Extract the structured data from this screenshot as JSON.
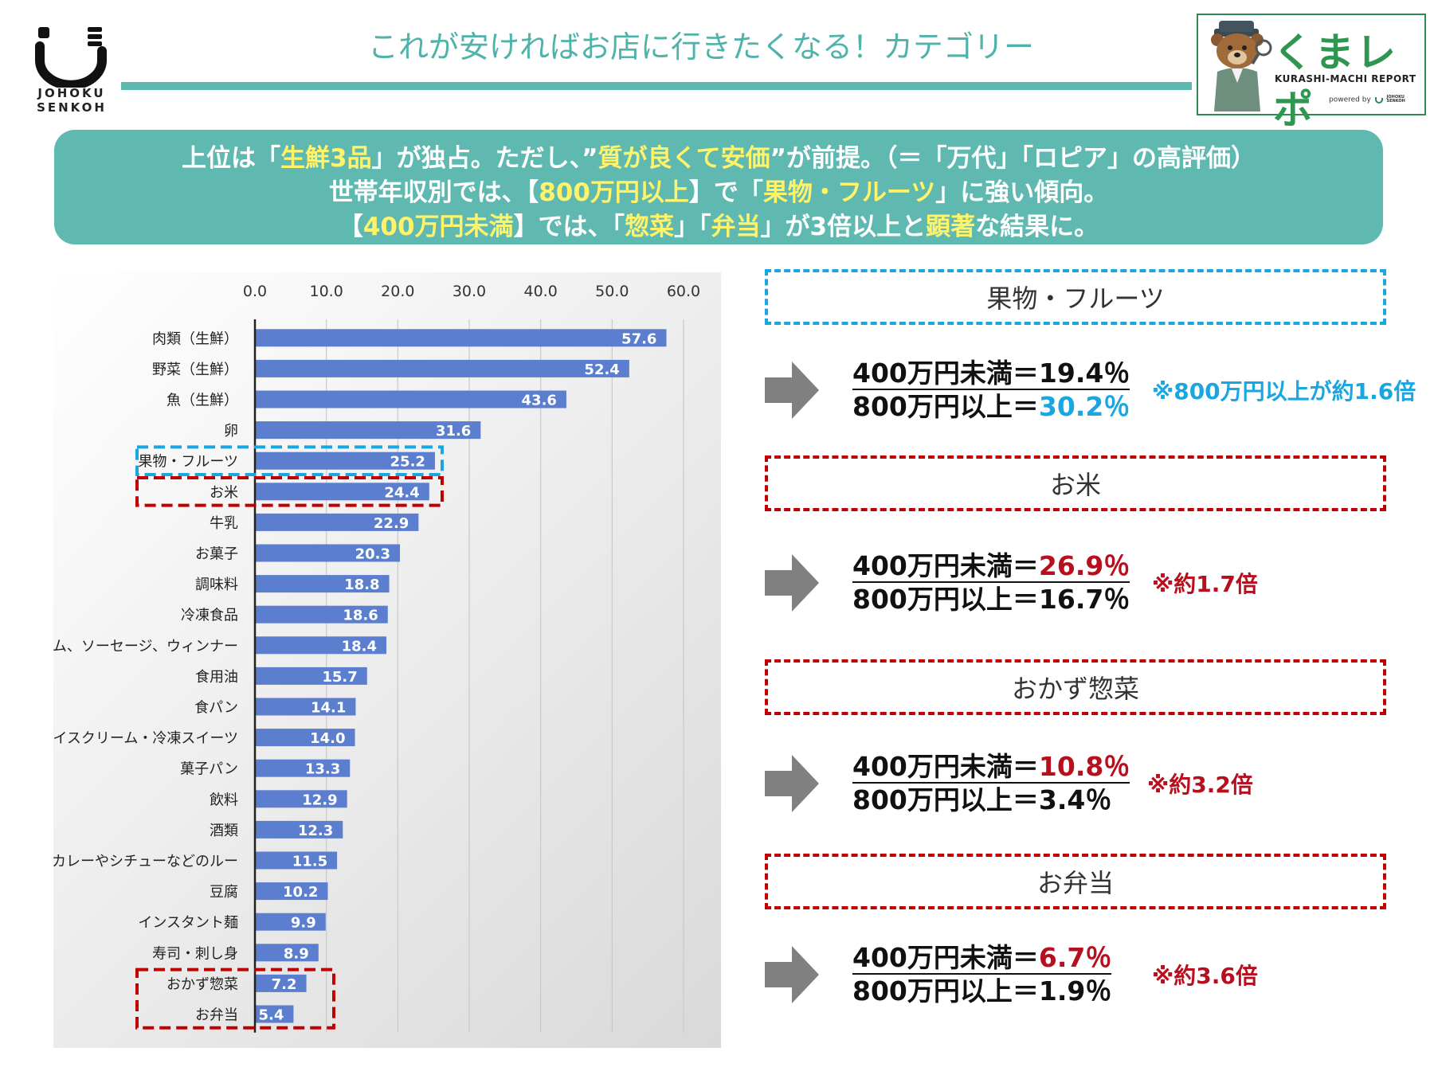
{
  "header": {
    "title": "これが安ければお店に行きたくなる！カテゴリー",
    "logo_text_line1": "JOHOKU",
    "logo_text_line2": "SENKOH"
  },
  "brand": {
    "name": "くまレポ",
    "subtitle": "KURASHI-MACHI REPORT",
    "powered": "powered by",
    "powered_line1": "JOHOKU",
    "powered_line2": "SENKOH"
  },
  "banner": {
    "line1": {
      "t1": "上位は「",
      "h1": "生鮮3品",
      "t2": "」が独占。ただし、”",
      "h2": "質が良くて安価",
      "t3": "”が前提。（＝「万代」「ロピア」の高評価）"
    },
    "line2": {
      "t1": "世帯年収別では、【",
      "h1": "800万円以上",
      "t2": "】で「",
      "h2": "果物・フルーツ",
      "t3": "」に強い傾向。"
    },
    "line3": {
      "t1": "【",
      "h1": "400万円未満",
      "t2": "】では、「",
      "h2": "惣菜",
      "t3": "」「",
      "h3": "弁当",
      "t4": "」が3倍以上と",
      "h4": "顕著",
      "t5": "な結果に。"
    }
  },
  "chart_data": {
    "type": "bar",
    "orientation": "horizontal",
    "xlim": [
      0,
      60
    ],
    "ticks": [
      "0.0",
      "10.0",
      "20.0",
      "30.0",
      "40.0",
      "50.0",
      "60.0"
    ],
    "categories": [
      "肉類（生鮮）",
      "野菜（生鮮）",
      "魚（生鮮）",
      "卵",
      "果物・フルーツ",
      "お米",
      "牛乳",
      "お菓子",
      "調味料",
      "冷凍食品",
      "ハム、ソーセージ、ウィンナー",
      "食用油",
      "食パン",
      "アイスクリーム・冷凍スイーツ",
      "菓子パン",
      "飲料",
      "酒類",
      "カレーやシチューなどのルー",
      "豆腐",
      "インスタント麺",
      "寿司・刺し身",
      "おかず惣菜",
      "お弁当"
    ],
    "values": [
      57.6,
      52.4,
      43.6,
      31.6,
      25.2,
      24.4,
      22.9,
      20.3,
      18.8,
      18.6,
      18.4,
      15.7,
      14.1,
      14.0,
      13.3,
      12.9,
      12.3,
      11.5,
      10.2,
      9.9,
      8.9,
      7.2,
      5.4
    ],
    "labels": [
      "57.6",
      "52.4",
      "43.6",
      "31.6",
      "25.2",
      "24.4",
      "22.9",
      "20.3",
      "18.8",
      "18.6",
      "18.4",
      "15.7",
      "14.1",
      "14.0",
      "13.3",
      "12.9",
      "12.3",
      "11.5",
      "10.2",
      "9.9",
      "8.9",
      "7.2",
      "5.4"
    ],
    "bar_color": "#5b7fce",
    "highlights": [
      {
        "category": "果物・フルーツ",
        "color": "#1aa6e0"
      },
      {
        "category": "お米",
        "color": "#c00000"
      },
      {
        "category": "おかず惣菜",
        "color": "#c00000"
      },
      {
        "category": "お弁当",
        "color": "#c00000"
      }
    ],
    "grid": true
  },
  "comparisons": [
    {
      "title": "果物・フルーツ",
      "low_label": "400万円未満＝",
      "low_value": "19.4％",
      "high_label": "800万円以上＝",
      "high_value": "30.2％",
      "note": "※800万円以上が約1.6倍",
      "emphasis": "high"
    },
    {
      "title": "お米",
      "low_label": "400万円未満＝",
      "low_value": "26.9％",
      "high_label": "800万円以上＝",
      "high_value": "16.7％",
      "note": "※約1.7倍",
      "emphasis": "low"
    },
    {
      "title": "おかず惣菜",
      "low_label": "400万円未満＝",
      "low_value": "10.8％",
      "high_label": "800万円以上＝",
      "high_value": "3.4％",
      "note": "※約3.2倍",
      "emphasis": "low"
    },
    {
      "title": "お弁当",
      "low_label": "400万円未満＝",
      "low_value": "6.7％",
      "high_label": "800万円以上＝",
      "high_value": "1.9％",
      "note": "※約3.6倍",
      "emphasis": "low"
    }
  ],
  "colors": {
    "teal": "#5fb9b0",
    "highlight_text": "#fff36a",
    "red": "#b80f1e",
    "blue": "#1aa6e0",
    "brand_green": "#2f9650"
  }
}
